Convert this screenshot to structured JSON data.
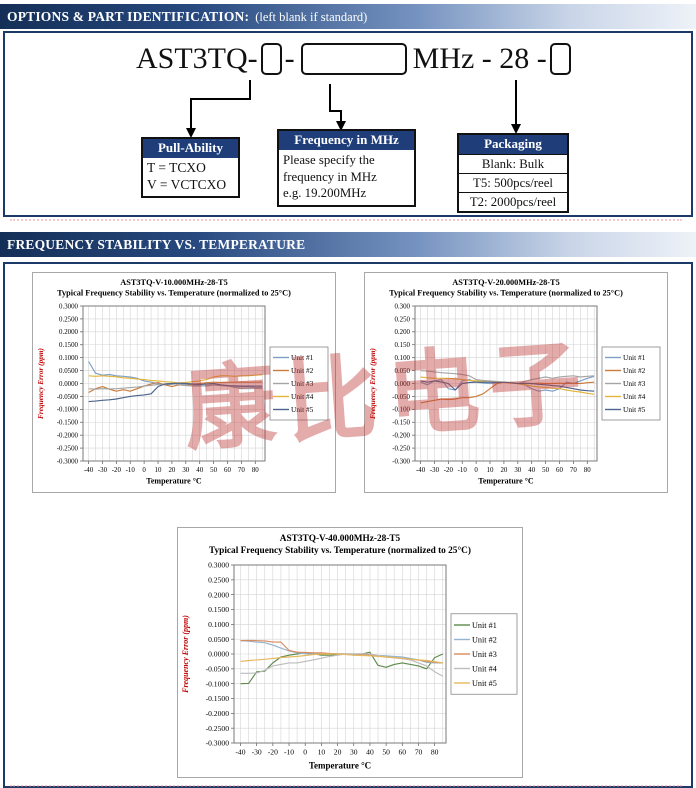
{
  "headers": {
    "options_title": "OPTIONS & PART IDENTIFICATION:",
    "options_note": "(left blank if standard)",
    "stability_title": "FREQUENCY STABILITY VS. TEMPERATURE"
  },
  "part_id": {
    "prefix": "AST3TQ-",
    "dash": "-",
    "mid": "MHz - 28 -",
    "callouts": {
      "pull_ability": {
        "title": "Pull-Ability",
        "rows": [
          "T =  TCXO",
          "V = VCTCXO"
        ]
      },
      "frequency": {
        "title": "Frequency in MHz",
        "lines": [
          "Please specify the",
          "frequency in MHz",
          "e.g. 19.200MHz"
        ]
      },
      "packaging": {
        "title": "Packaging",
        "rows": [
          "Blank: Bulk",
          "T5:  500pcs/reel",
          "T2: 2000pcs/reel"
        ]
      }
    }
  },
  "watermark": {
    "text": "康比电子",
    "color": "#c03a3a"
  },
  "colors": {
    "banner_dark": "#142f57",
    "banner_light": "#eef2f8",
    "box_border": "#1c3a68",
    "callout_header": "#1f3e79",
    "axis_label_red": "#c00000"
  },
  "chart_data": [
    {
      "type": "line",
      "title": "AST3TQ-V-10.000MHz-28-T5",
      "subtitle": "Typical Frequency Stability vs. Temperature (normalized to 25°C)",
      "xlabel": "Temperature °C",
      "ylabel": "Frequency Error (ppm)",
      "xlim": [
        -44,
        87
      ],
      "ylim": [
        -0.3,
        0.3
      ],
      "x_ticks": [
        -40,
        -30,
        -20,
        -10,
        0,
        10,
        20,
        30,
        40,
        50,
        60,
        70,
        80
      ],
      "y_tick_step": 0.05,
      "y_decimals": 4,
      "grid_x_step": 5,
      "grid": true,
      "legend_position": "right",
      "x": [
        -40,
        -35,
        -30,
        -25,
        -20,
        -15,
        -10,
        -5,
        0,
        5,
        10,
        15,
        20,
        25,
        30,
        35,
        40,
        45,
        50,
        55,
        60,
        65,
        70,
        75,
        80,
        85
      ],
      "series": [
        {
          "name": "Unit #1",
          "color": "#7f9ec7",
          "values": [
            0.085,
            0.04,
            0.032,
            0.035,
            0.03,
            0.028,
            0.025,
            0.02,
            0.01,
            0.005,
            0,
            -0.005,
            -0.003,
            0,
            -0.003,
            -0.005,
            -0.008,
            -0.01,
            -0.006,
            -0.008,
            -0.01,
            -0.012,
            -0.013,
            -0.014,
            -0.015,
            -0.015
          ]
        },
        {
          "name": "Unit #2",
          "color": "#cb7b38",
          "values": [
            -0.035,
            -0.02,
            -0.012,
            -0.022,
            -0.03,
            -0.024,
            -0.03,
            -0.02,
            -0.01,
            -0.002,
            0.004,
            -0.005,
            -0.012,
            -0.005,
            -0.008,
            -0.003,
            0,
            0.003,
            0.005,
            0.004,
            0.005,
            0.005,
            0.006,
            0.005,
            0.005,
            0.006
          ]
        },
        {
          "name": "Unit #3",
          "color": "#a5a5a5",
          "values": [
            -0.02,
            -0.022,
            -0.02,
            -0.021,
            -0.02,
            -0.018,
            -0.016,
            -0.014,
            -0.01,
            -0.007,
            -0.004,
            -0.002,
            0,
            -0.004,
            -0.008,
            -0.01,
            -0.01,
            -0.008,
            -0.005,
            -0.006,
            -0.01,
            -0.015,
            -0.02,
            -0.02,
            -0.019,
            -0.02
          ]
        },
        {
          "name": "Unit #4",
          "color": "#e2b63a",
          "values": [
            0.03,
            0.028,
            0.03,
            0.028,
            0.026,
            0.022,
            0.02,
            0.017,
            0.015,
            0.012,
            0.01,
            0.007,
            0.005,
            0.002,
            0.004,
            0.007,
            0.01,
            0.015,
            0.025,
            0.03,
            0.03,
            0.028,
            0.03,
            0.03,
            0.032,
            0.034
          ]
        },
        {
          "name": "Unit #5",
          "color": "#4d648c",
          "values": [
            -0.07,
            -0.068,
            -0.065,
            -0.063,
            -0.06,
            -0.055,
            -0.05,
            -0.047,
            -0.044,
            -0.04,
            -0.012,
            -0.002,
            0,
            0.001,
            0,
            -0.002,
            -0.004,
            -0.002,
            0,
            -0.005,
            -0.008,
            -0.009,
            -0.01,
            -0.01,
            -0.01,
            -0.01
          ]
        }
      ]
    },
    {
      "type": "line",
      "title": "AST3TQ-V-20.000MHz-28-T5",
      "subtitle": "Typical Frequency Stability vs. Temperature (normalized to 25°C)",
      "xlabel": "Temperature °C",
      "ylabel": "Frequency Error (ppm)",
      "xlim": [
        -44,
        87
      ],
      "ylim": [
        -0.3,
        0.3
      ],
      "x_ticks": [
        -40,
        -30,
        -20,
        -10,
        0,
        10,
        20,
        30,
        40,
        50,
        60,
        70,
        80
      ],
      "y_tick_step": 0.05,
      "y_decimals": 3,
      "grid_x_step": 5,
      "grid": true,
      "legend_position": "right",
      "x": [
        -40,
        -35,
        -30,
        -25,
        -20,
        -15,
        -10,
        -5,
        0,
        5,
        10,
        15,
        20,
        25,
        30,
        35,
        40,
        45,
        50,
        55,
        60,
        65,
        70,
        75,
        80,
        85
      ],
      "series": [
        {
          "name": "Unit #1",
          "color": "#7f9ec7",
          "values": [
            0.005,
            -0.005,
            0.01,
            0.015,
            -0.02,
            -0.025,
            0.01,
            0.015,
            0.005,
            0.002,
            0,
            0.003,
            0.005,
            0.002,
            0,
            -0.005,
            -0.02,
            -0.03,
            -0.025,
            -0.03,
            -0.02,
            0.005,
            0,
            0.01,
            0.02,
            0.028
          ]
        },
        {
          "name": "Unit #2",
          "color": "#cb7b38",
          "values": [
            -0.075,
            -0.07,
            -0.065,
            -0.06,
            -0.062,
            -0.06,
            -0.055,
            -0.055,
            -0.05,
            -0.04,
            -0.02,
            0,
            0.005,
            0.003,
            0,
            0.001,
            0,
            0.001,
            0,
            0,
            0.001,
            0,
            0.001,
            0,
            0.003,
            0.005
          ]
        },
        {
          "name": "Unit #3",
          "color": "#a5a5a5",
          "values": [
            0.05,
            0.048,
            0.045,
            0.042,
            0.04,
            0.038,
            0.035,
            0.03,
            0.015,
            0.012,
            0.01,
            0.008,
            0.005,
            0.002,
            0,
            0.008,
            0.015,
            0.02,
            0.025,
            0.02,
            0.025,
            0.028,
            0.03,
            0.025,
            0.028,
            0.03
          ]
        },
        {
          "name": "Unit #4",
          "color": "#e2b63a",
          "values": [
            0.025,
            0.022,
            0.02,
            0.02,
            0.02,
            0.018,
            0.015,
            0.012,
            0.01,
            0.008,
            0.005,
            0.005,
            0.004,
            0.002,
            0,
            -0.005,
            -0.01,
            -0.013,
            -0.015,
            -0.018,
            -0.02,
            -0.025,
            -0.03,
            -0.033,
            -0.038,
            -0.042
          ]
        },
        {
          "name": "Unit #5",
          "color": "#4d648c",
          "values": [
            0.01,
            0.005,
            0.01,
            0.006,
            0,
            -0.025,
            0,
            0.004,
            0.005,
            0.005,
            0.005,
            0.004,
            0.005,
            0.003,
            0,
            0,
            0,
            -0.003,
            -0.005,
            -0.008,
            -0.01,
            -0.015,
            -0.02,
            -0.025,
            -0.028,
            -0.03
          ]
        }
      ]
    },
    {
      "type": "line",
      "title": "AST3TQ-V-40.000MHz-28-T5",
      "subtitle": "Typical Frequency Stability vs. Temperature (normalized to 25°C)",
      "xlabel": "Temperature °C",
      "ylabel": "Frequency Error (ppm)",
      "xlim": [
        -44,
        87
      ],
      "ylim": [
        -0.3,
        0.3
      ],
      "x_ticks": [
        -40,
        -30,
        -20,
        -10,
        0,
        10,
        20,
        30,
        40,
        50,
        60,
        70,
        80
      ],
      "y_tick_step": 0.05,
      "y_decimals": 4,
      "grid_x_step": 5,
      "grid": true,
      "legend_position": "right",
      "x": [
        -40,
        -35,
        -30,
        -25,
        -20,
        -15,
        -10,
        -5,
        0,
        5,
        10,
        15,
        20,
        25,
        30,
        35,
        40,
        45,
        50,
        55,
        60,
        65,
        70,
        75,
        80,
        85
      ],
      "series": [
        {
          "name": "Unit #1",
          "color": "#5d8a4b",
          "values": [
            -0.1,
            -0.099,
            -0.06,
            -0.058,
            -0.03,
            -0.01,
            -0.004,
            0,
            0.005,
            0.001,
            -0.004,
            -0.004,
            -0.002,
            0,
            -0.004,
            0,
            0.006,
            -0.038,
            -0.045,
            -0.035,
            -0.03,
            -0.035,
            -0.04,
            -0.05,
            -0.012,
            0
          ]
        },
        {
          "name": "Unit #2",
          "color": "#92b4d2",
          "values": [
            0.045,
            0.043,
            0.04,
            0.038,
            0.03,
            0.02,
            0.01,
            0.004,
            0.001,
            0,
            0.001,
            0,
            0.001,
            0,
            0,
            0,
            -0.003,
            -0.005,
            -0.006,
            -0.008,
            -0.01,
            -0.015,
            -0.02,
            -0.028,
            -0.03,
            -0.03
          ]
        },
        {
          "name": "Unit #3",
          "color": "#d98a5e",
          "values": [
            0.045,
            0.046,
            0.045,
            0.044,
            0.04,
            0.04,
            0.012,
            0.006,
            0.005,
            0.004,
            0.004,
            0.002,
            0,
            0,
            0,
            -0.002,
            -0.004,
            -0.006,
            -0.01,
            -0.012,
            -0.015,
            -0.018,
            -0.02,
            -0.025,
            -0.028,
            -0.03
          ]
        },
        {
          "name": "Unit #4",
          "color": "#bcbcbc",
          "values": [
            -0.065,
            -0.065,
            -0.064,
            -0.055,
            -0.04,
            -0.035,
            -0.03,
            -0.03,
            -0.025,
            -0.02,
            -0.014,
            -0.008,
            -0.004,
            0,
            0,
            0.001,
            0,
            -0.005,
            -0.01,
            -0.013,
            -0.016,
            -0.02,
            -0.03,
            -0.04,
            -0.06,
            -0.075
          ]
        },
        {
          "name": "Unit #5",
          "color": "#e6b85c",
          "values": [
            -0.025,
            -0.022,
            -0.02,
            -0.018,
            -0.015,
            -0.012,
            -0.01,
            -0.008,
            -0.005,
            -0.002,
            0,
            0,
            0,
            -0.002,
            -0.004,
            -0.005,
            -0.006,
            -0.008,
            -0.01,
            -0.012,
            -0.015,
            -0.018,
            -0.02,
            -0.022,
            -0.026,
            -0.03
          ]
        }
      ]
    }
  ]
}
